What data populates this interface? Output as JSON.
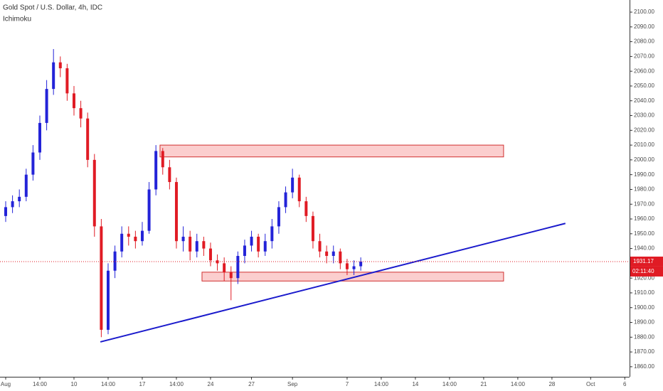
{
  "chart_data": {
    "type": "candlestick",
    "title": "Gold Spot / U.S. Dollar, 4h, IDC",
    "indicator": "Ichimoku",
    "up_color": "#2323d8",
    "down_color": "#e01b24",
    "x": [
      0,
      3,
      6,
      9,
      12,
      15,
      18,
      21,
      24,
      27,
      30,
      33,
      36,
      39,
      42,
      45,
      48,
      51,
      54,
      57,
      60,
      63,
      66,
      69,
      72,
      75,
      78,
      81,
      84,
      87,
      90,
      93,
      96,
      99,
      102,
      105,
      108,
      111,
      114,
      117,
      120,
      123,
      126,
      129,
      132,
      135,
      138,
      141,
      144,
      147,
      150,
      153,
      156
    ],
    "open": [
      1962,
      1968,
      1972,
      1975,
      1990,
      2005,
      2025,
      2048,
      2066,
      2062,
      2045,
      2035,
      2028,
      2000,
      1955,
      1885,
      1925,
      1938,
      1950,
      1948,
      1945,
      1952,
      1980,
      2006,
      1995,
      1985,
      1945,
      1948,
      1938,
      1945,
      1940,
      1932,
      1930,
      1924,
      1920,
      1935,
      1942,
      1948,
      1938,
      1945,
      1955,
      1968,
      1978,
      1988,
      1972,
      1962,
      1945,
      1938,
      1935,
      1938,
      1930,
      1926,
      1928
    ],
    "high": [
      1972,
      1976,
      1980,
      1994,
      2010,
      2030,
      2054,
      2075,
      2070,
      2065,
      2050,
      2040,
      2032,
      2004,
      1960,
      1930,
      1942,
      1955,
      1955,
      1952,
      1958,
      1985,
      2010,
      2008,
      2000,
      1988,
      1955,
      1952,
      1950,
      1948,
      1944,
      1936,
      1934,
      1928,
      1938,
      1946,
      1952,
      1950,
      1950,
      1960,
      1972,
      1982,
      1994,
      1990,
      1975,
      1965,
      1950,
      1942,
      1942,
      1940,
      1933,
      1932,
      1934
    ],
    "low": [
      1958,
      1964,
      1968,
      1972,
      1986,
      2000,
      2020,
      2044,
      2056,
      2040,
      2030,
      2022,
      1995,
      1948,
      1880,
      1882,
      1920,
      1934,
      1942,
      1940,
      1942,
      1950,
      1976,
      1990,
      1980,
      1940,
      1938,
      1932,
      1934,
      1935,
      1928,
      1925,
      1918,
      1905,
      1916,
      1930,
      1938,
      1934,
      1935,
      1940,
      1950,
      1964,
      1974,
      1968,
      1958,
      1940,
      1934,
      1930,
      1930,
      1926,
      1922,
      1922,
      1925
    ],
    "close": [
      1968,
      1972,
      1975,
      1990,
      2005,
      2025,
      2048,
      2066,
      2062,
      2045,
      2035,
      2028,
      2000,
      1955,
      1885,
      1925,
      1938,
      1950,
      1948,
      1945,
      1952,
      1980,
      2006,
      1995,
      1985,
      1945,
      1948,
      1938,
      1945,
      1940,
      1932,
      1930,
      1924,
      1920,
      1935,
      1942,
      1948,
      1938,
      1945,
      1955,
      1968,
      1978,
      1988,
      1972,
      1962,
      1945,
      1938,
      1935,
      1938,
      1930,
      1926,
      1928,
      1931.17
    ],
    "zones": [
      {
        "x0": 67.8,
        "x1": 218.75,
        "top": 2010,
        "bottom": 2002
      },
      {
        "x0": 86.25,
        "x1": 218.75,
        "top": 1924,
        "bottom": 1918
      }
    ],
    "trendline": {
      "x0": 41.6,
      "y0": 1876.8,
      "x1": 245.9,
      "y1": 1957
    },
    "last_price": {
      "value": 1931.17,
      "label": "1931.17"
    },
    "countdown": "02:11:40",
    "xlim": [
      -2.5,
      274.1
    ],
    "ylim": [
      1853.2,
      2108.2
    ],
    "xticks": [
      {
        "value": 0,
        "label": "Aug"
      },
      {
        "value": 15,
        "label": "14:00"
      },
      {
        "value": 30,
        "label": "10"
      },
      {
        "value": 45,
        "label": "14:00"
      },
      {
        "value": 60,
        "label": "17"
      },
      {
        "value": 75,
        "label": "14:00"
      },
      {
        "value": 90,
        "label": "24"
      },
      {
        "value": 108,
        "label": "27"
      },
      {
        "value": 126,
        "label": "Sep"
      },
      {
        "value": 150,
        "label": "7"
      },
      {
        "value": 165,
        "label": "14:00"
      },
      {
        "value": 180,
        "label": "14"
      },
      {
        "value": 195,
        "label": "14:00"
      },
      {
        "value": 210,
        "label": "21"
      },
      {
        "value": 225,
        "label": "14:00"
      },
      {
        "value": 240,
        "label": "28"
      },
      {
        "value": 257,
        "label": "Oct"
      },
      {
        "value": 272,
        "label": "6"
      }
    ],
    "yticks": [
      {
        "value": 1860,
        "label": "1860.00"
      },
      {
        "value": 1870,
        "label": "1870.00"
      },
      {
        "value": 1880,
        "label": "1880.00"
      },
      {
        "value": 1890,
        "label": "1890.00"
      },
      {
        "value": 1900,
        "label": "1900.00"
      },
      {
        "value": 1910,
        "label": "1910.00"
      },
      {
        "value": 1920,
        "label": "1920.00"
      },
      {
        "value": 1930,
        "label": "1930.00"
      },
      {
        "value": 1940,
        "label": "1940.00"
      },
      {
        "value": 1950,
        "label": "1950.00"
      },
      {
        "value": 1960,
        "label": "1960.00"
      },
      {
        "value": 1970,
        "label": "1970.00"
      },
      {
        "value": 1980,
        "label": "1980.00"
      },
      {
        "value": 1990,
        "label": "1990.00"
      },
      {
        "value": 2000,
        "label": "2000.00"
      },
      {
        "value": 2010,
        "label": "2010.00"
      },
      {
        "value": 2020,
        "label": "2020.00"
      },
      {
        "value": 2030,
        "label": "2030.00"
      },
      {
        "value": 2040,
        "label": "2040.00"
      },
      {
        "value": 2050,
        "label": "2050.00"
      },
      {
        "value": 2060,
        "label": "2060.00"
      },
      {
        "value": 2070,
        "label": "2070.00"
      },
      {
        "value": 2080,
        "label": "2080.00"
      },
      {
        "value": 2090,
        "label": "2090.00"
      },
      {
        "value": 2100,
        "label": "2100.00"
      }
    ]
  }
}
